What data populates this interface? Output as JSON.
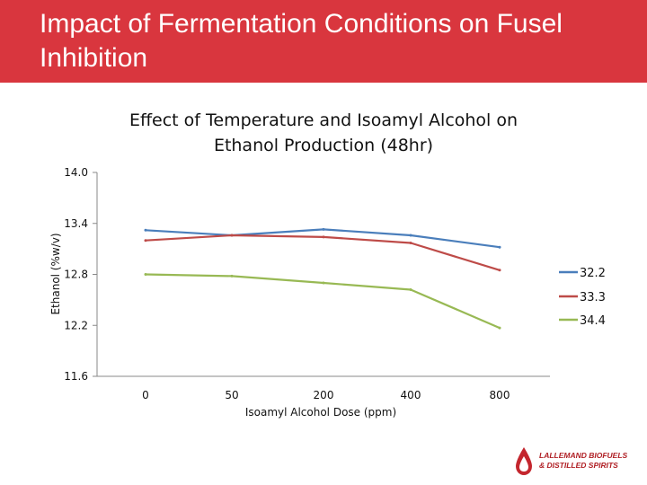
{
  "header": {
    "title": "Impact of Fermentation Conditions on Fusel Inhibition",
    "background_color": "#d9363e"
  },
  "logo": {
    "text_line1": "LALLEMAND BIOFUELS",
    "text_line2": "& DISTILLED SPIRITS",
    "icon": "drop-logo-icon",
    "color": "#b01f24"
  },
  "chart_data": {
    "type": "line",
    "title": "Effect of Temperature and Isoamyl Alcohol on Ethanol Production (48hr)",
    "xlabel": "Isoamyl Alcohol Dose (ppm)",
    "ylabel": "Ethanol (%w/v)",
    "categories": [
      "0",
      "50",
      "200",
      "400",
      "800"
    ],
    "ylim": [
      11.6,
      14.0
    ],
    "yticks": [
      "14.0",
      "13.4",
      "12.8",
      "12.2",
      "11.6"
    ],
    "grid": false,
    "legend_position": "right",
    "series": [
      {
        "name": "32.2",
        "color": "#4a7ebb",
        "values": [
          13.32,
          13.26,
          13.33,
          13.26,
          13.12
        ]
      },
      {
        "name": "33.3",
        "color": "#be4b48",
        "values": [
          13.2,
          13.26,
          13.24,
          13.17,
          12.85
        ]
      },
      {
        "name": "34.4",
        "color": "#98b954",
        "values": [
          12.8,
          12.78,
          12.7,
          12.62,
          12.17
        ]
      }
    ]
  }
}
